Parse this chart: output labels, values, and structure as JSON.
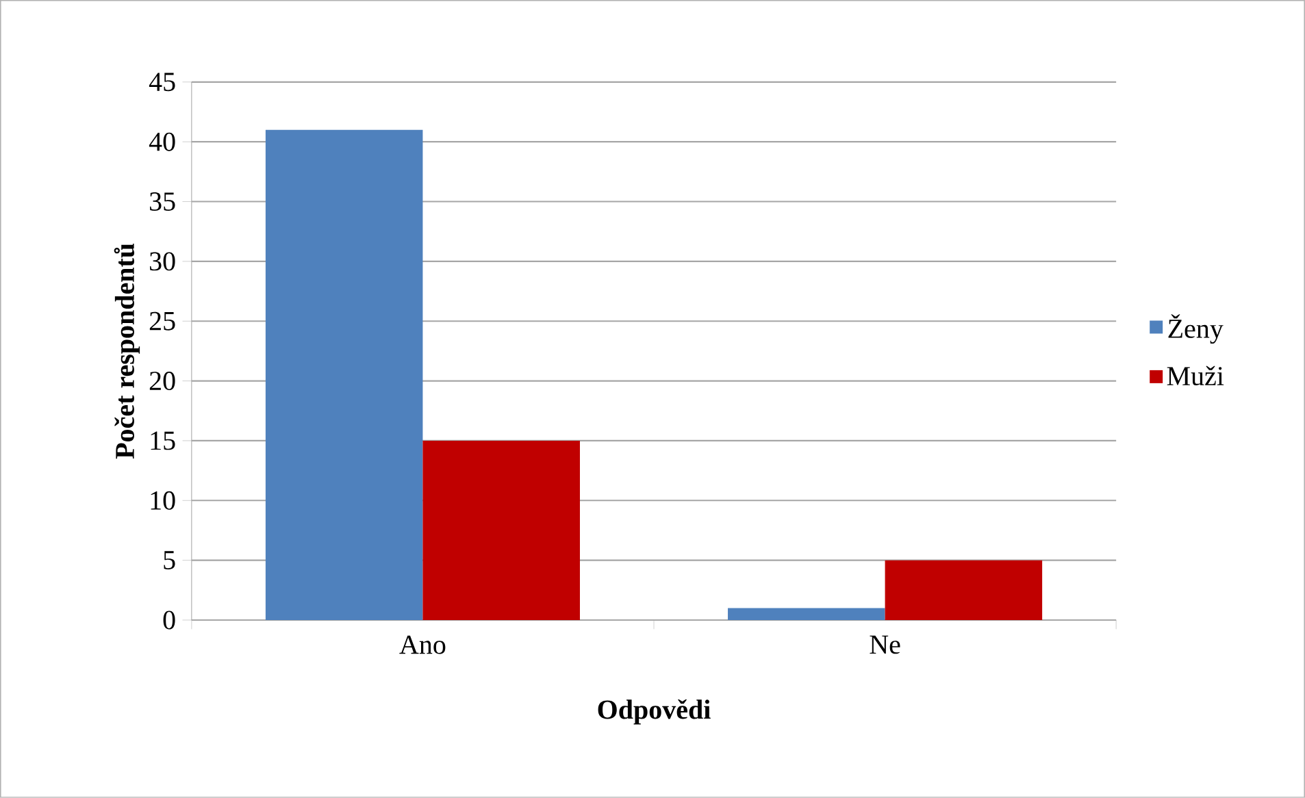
{
  "chart_data": {
    "type": "bar",
    "xlabel": "Odpovědi",
    "ylabel": "Počet respondentů",
    "categories": [
      "Ano",
      "Ne"
    ],
    "series": [
      {
        "name": "Ženy",
        "color": "#4f81bd",
        "values": [
          41,
          1
        ]
      },
      {
        "name": "Muži",
        "color": "#c00000",
        "values": [
          15,
          5
        ]
      }
    ],
    "ylim": [
      0,
      45
    ],
    "yticks": [
      0,
      5,
      10,
      15,
      20,
      25,
      30,
      35,
      40,
      45
    ],
    "grid": "y",
    "legend": "right"
  }
}
